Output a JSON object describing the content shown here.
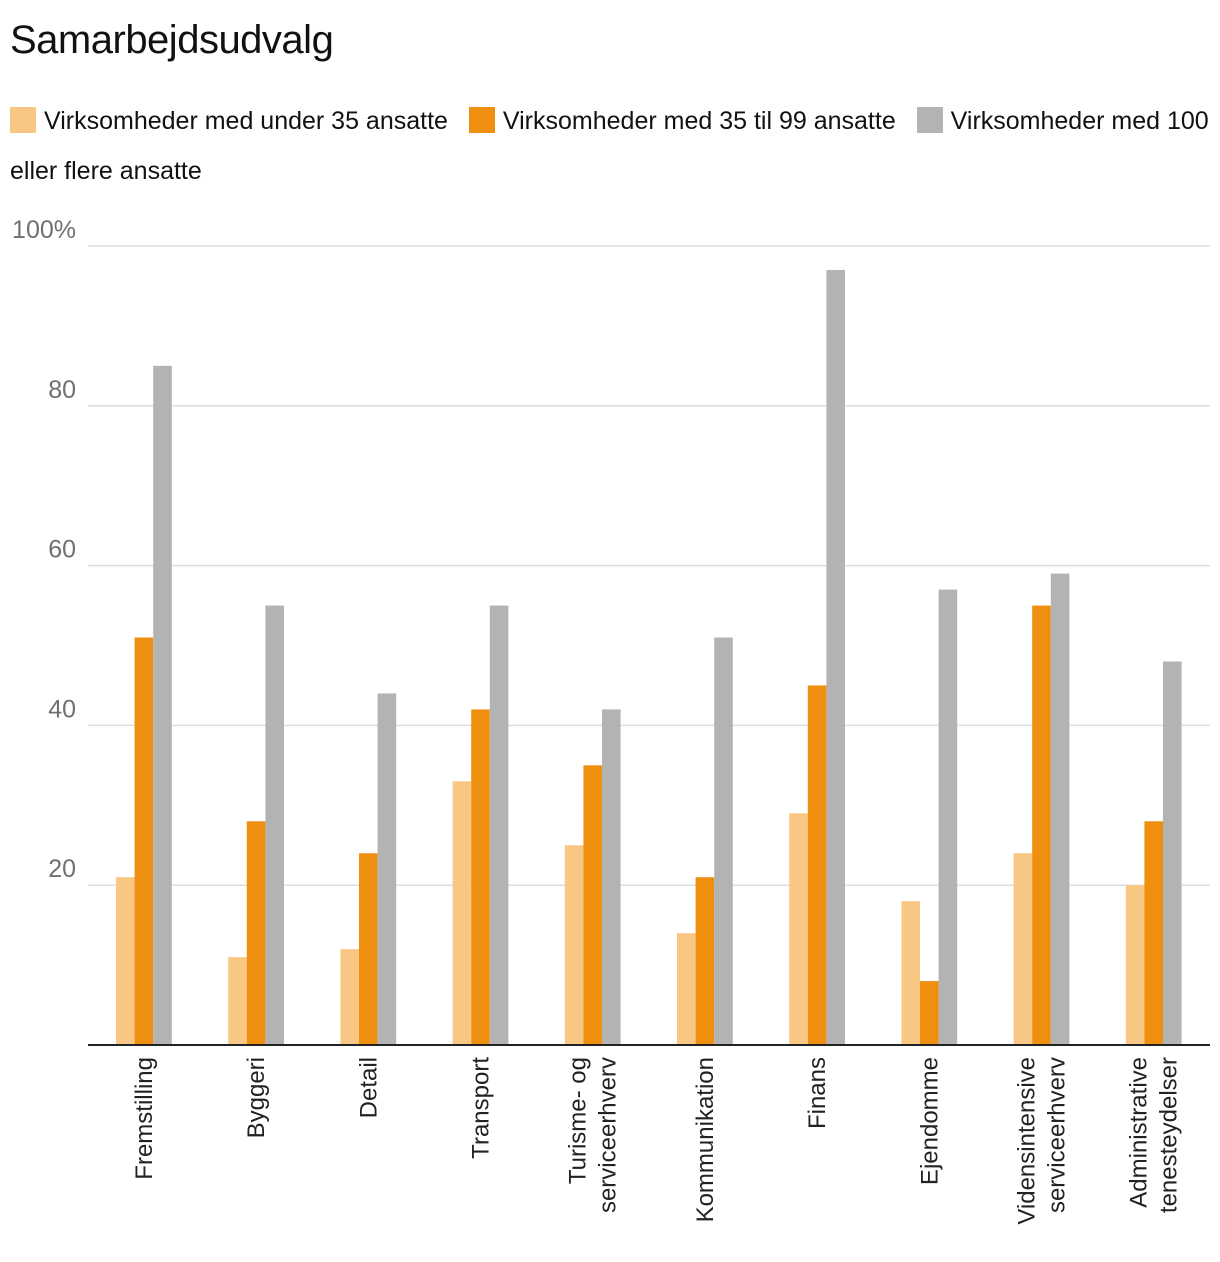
{
  "colors": {
    "small": "#F9C784",
    "medium": "#EF8F0F",
    "large": "#B3B3B3",
    "grid": "#DDDDDD",
    "axis": "#222222"
  },
  "chart_data": {
    "type": "bar",
    "title": "Samarbejdsudvalg",
    "xlabel": "",
    "ylabel": "",
    "ylim": [
      0,
      100
    ],
    "yticks": [
      {
        "value": 20,
        "label": "20"
      },
      {
        "value": 40,
        "label": "40"
      },
      {
        "value": 60,
        "label": "60"
      },
      {
        "value": 80,
        "label": "80"
      },
      {
        "value": 100,
        "label": "100%"
      }
    ],
    "categories": [
      [
        "Fremstilling"
      ],
      [
        "Byggeri"
      ],
      [
        "Detail"
      ],
      [
        "Transport"
      ],
      [
        "Turisme- og",
        "serviceerhverv"
      ],
      [
        "Kommunikation"
      ],
      [
        "Finans"
      ],
      [
        "Ejendomme"
      ],
      [
        "Vidensintensive",
        "serviceerhverv"
      ],
      [
        "Administrative",
        "tenesteydelser"
      ]
    ],
    "series": [
      {
        "key": "small",
        "name": "Virksomheder med under 35 ansatte",
        "values": [
          21,
          11,
          12,
          33,
          25,
          14,
          29,
          18,
          24,
          20
        ]
      },
      {
        "key": "medium",
        "name": "Virksomheder med 35 til 99 ansatte",
        "values": [
          51,
          28,
          24,
          42,
          35,
          21,
          45,
          8,
          55,
          28
        ]
      },
      {
        "key": "large",
        "name": "Virksomheder med 100 eller flere ansatte",
        "values": [
          85,
          55,
          44,
          55,
          42,
          51,
          97,
          57,
          59,
          48
        ]
      }
    ],
    "legend_position": "top",
    "grid": true
  }
}
